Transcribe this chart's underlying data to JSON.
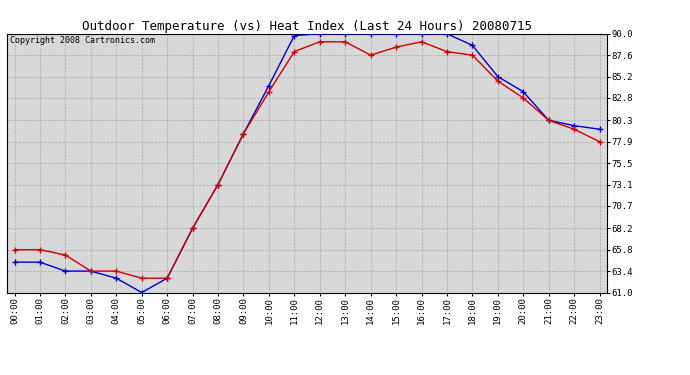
{
  "title": "Outdoor Temperature (vs) Heat Index (Last 24 Hours) 20080715",
  "copyright": "Copyright 2008 Cartronics.com",
  "hours": [
    "00:00",
    "01:00",
    "02:00",
    "03:00",
    "04:00",
    "05:00",
    "06:00",
    "07:00",
    "08:00",
    "09:00",
    "10:00",
    "11:00",
    "12:00",
    "13:00",
    "14:00",
    "15:00",
    "16:00",
    "17:00",
    "18:00",
    "19:00",
    "20:00",
    "21:00",
    "22:00",
    "23:00"
  ],
  "temp_red": [
    65.8,
    65.8,
    65.2,
    63.4,
    63.4,
    62.6,
    62.6,
    68.2,
    73.1,
    78.8,
    83.5,
    88.0,
    89.1,
    89.1,
    87.6,
    88.5,
    89.1,
    88.0,
    87.6,
    84.7,
    82.8,
    80.3,
    79.3,
    77.9
  ],
  "temp_blue": [
    64.4,
    64.4,
    63.4,
    63.4,
    62.6,
    61.0,
    62.6,
    68.2,
    73.1,
    78.8,
    84.2,
    89.8,
    90.0,
    90.0,
    90.0,
    90.0,
    90.0,
    90.0,
    88.7,
    85.2,
    83.5,
    80.3,
    79.7,
    79.3
  ],
  "ylim_min": 61.0,
  "ylim_max": 90.0,
  "yticks": [
    61.0,
    63.4,
    65.8,
    68.2,
    70.7,
    73.1,
    75.5,
    77.9,
    80.3,
    82.8,
    85.2,
    87.6,
    90.0
  ],
  "red_color": "#cc0000",
  "blue_color": "#0000cc",
  "bg_color": "#ffffff",
  "plot_bg_color": "#d8d8d8",
  "grid_color": "#aaaaaa",
  "title_fontsize": 9,
  "copyright_fontsize": 6,
  "tick_fontsize": 6.5
}
